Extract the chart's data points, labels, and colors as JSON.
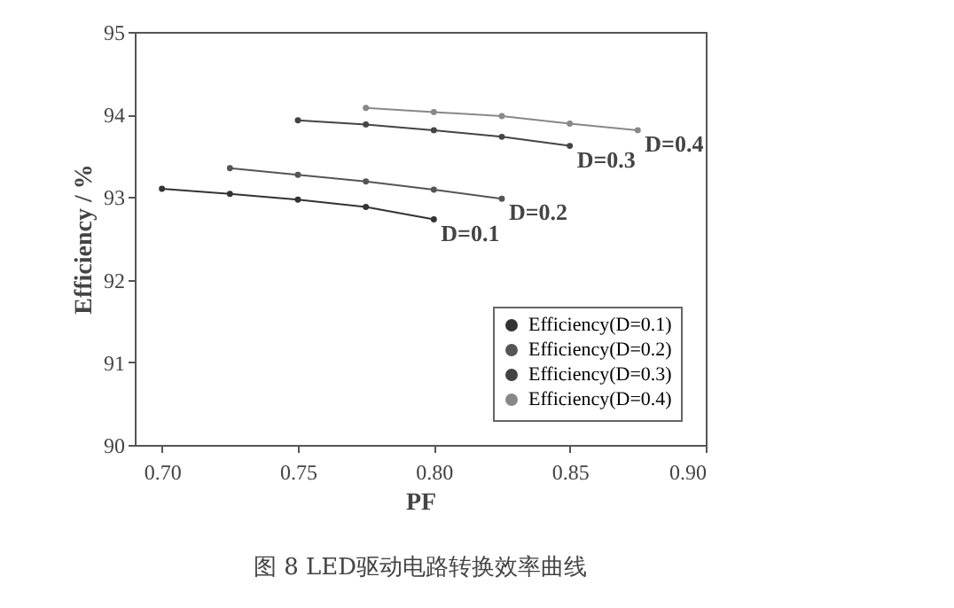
{
  "chart_data": {
    "type": "line",
    "title": "图 8  LED驱动电路转换效率曲线",
    "xlabel": "PF",
    "ylabel": "Efficiency / %",
    "xlim": [
      0.69,
      0.9
    ],
    "xticks": [
      {
        "value": 0.7,
        "label": "0.70"
      },
      {
        "value": 0.75,
        "label": "0.75"
      },
      {
        "value": 0.8,
        "label": "0.80"
      },
      {
        "value": 0.85,
        "label": "0.85"
      },
      {
        "value": 0.9,
        "label": "0.90"
      }
    ],
    "ylim": [
      90,
      95
    ],
    "yticks": [
      90,
      91,
      92,
      93,
      94,
      95
    ],
    "grid": false,
    "legend": "bottom right",
    "marker": "circle",
    "line_style": "solid",
    "series": [
      {
        "name": "Efficiency(D=0.1)",
        "color": "#333333",
        "x": [
          0.7,
          0.725,
          0.75,
          0.775,
          0.8
        ],
        "values": [
          93.1,
          93.04,
          92.97,
          92.88,
          92.73
        ]
      },
      {
        "name": "Efficiency(D=0.2)",
        "color": "#555555",
        "x": [
          0.725,
          0.75,
          0.775,
          0.8,
          0.825
        ],
        "values": [
          93.35,
          93.27,
          93.19,
          93.09,
          92.98
        ]
      },
      {
        "name": "Efficiency(D=0.3)",
        "color": "#444444",
        "x": [
          0.75,
          0.775,
          0.8,
          0.825,
          0.85
        ],
        "values": [
          93.93,
          93.88,
          93.81,
          93.73,
          93.62
        ]
      },
      {
        "name": "Efficiency(D=0.4)",
        "color": "#888888",
        "x": [
          0.775,
          0.8,
          0.825,
          0.85,
          0.875
        ],
        "values": [
          94.08,
          94.03,
          93.98,
          93.89,
          93.81
        ]
      }
    ],
    "annotations": [
      {
        "text": "D=0.1",
        "x": 0.8,
        "y": 92.73
      },
      {
        "text": "D=0.2",
        "x": 0.825,
        "y": 92.98
      },
      {
        "text": "D=0.3",
        "x": 0.85,
        "y": 93.62
      },
      {
        "text": "D=0.4",
        "x": 0.875,
        "y": 93.81
      }
    ]
  }
}
